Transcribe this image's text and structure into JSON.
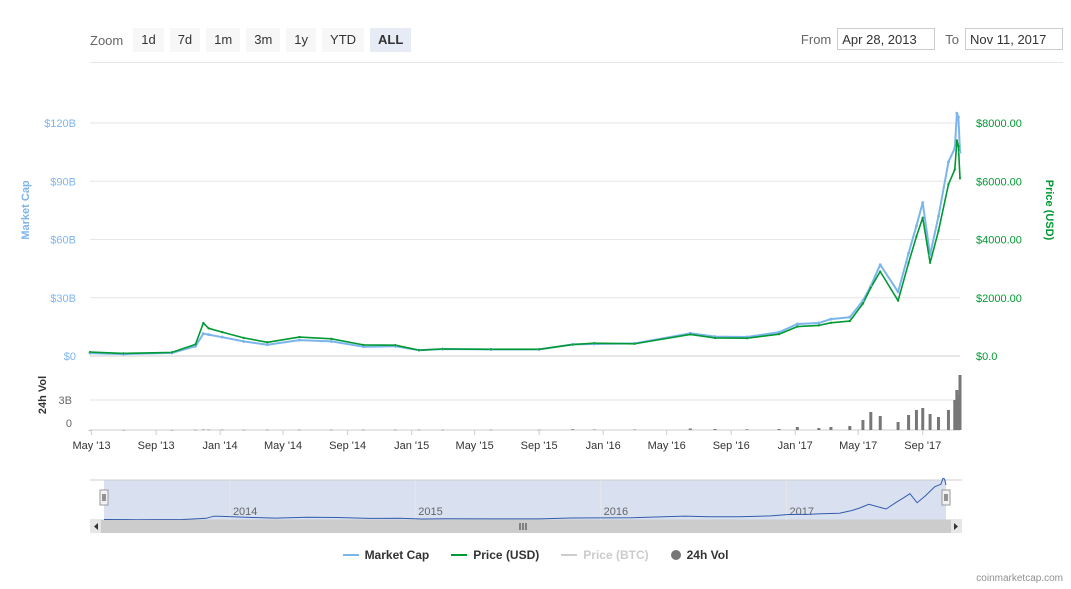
{
  "toolbar": {
    "zoom_label": "Zoom",
    "buttons": [
      "1d",
      "7d",
      "1m",
      "3m",
      "1y",
      "YTD",
      "ALL"
    ],
    "active": "ALL",
    "from_label": "From",
    "from_value": "Apr 28, 2013",
    "to_label": "To",
    "to_value": "Nov 11, 2017"
  },
  "colors": {
    "market_cap": "#7cb5ec",
    "price_usd": "#009933",
    "price_btc": "#cccccc",
    "volume": "#777777"
  },
  "legend": {
    "market_cap": "Market Cap",
    "price_usd": "Price (USD)",
    "price_btc": "Price (BTC)",
    "volume": "24h Vol"
  },
  "credit": "coinmarketcap.com",
  "chart_data": {
    "type": "line",
    "x": [
      "2013-04-28",
      "2013-07-01",
      "2013-10-01",
      "2013-11-15",
      "2013-11-30",
      "2013-12-10",
      "2014-01-05",
      "2014-02-15",
      "2014-04-01",
      "2014-06-01",
      "2014-08-01",
      "2014-10-01",
      "2014-12-01",
      "2015-01-15",
      "2015-03-01",
      "2015-06-01",
      "2015-09-01",
      "2015-11-04",
      "2015-12-15",
      "2016-03-01",
      "2016-06-15",
      "2016-08-01",
      "2016-10-01",
      "2016-12-01",
      "2017-01-05",
      "2017-02-15",
      "2017-03-10",
      "2017-04-15",
      "2017-05-10",
      "2017-05-25",
      "2017-06-12",
      "2017-07-16",
      "2017-08-05",
      "2017-08-20",
      "2017-09-01",
      "2017-09-15",
      "2017-10-01",
      "2017-10-20",
      "2017-11-01",
      "2017-11-05",
      "2017-11-08",
      "2017-11-11"
    ],
    "series": [
      {
        "name": "Market Cap",
        "axis": "left",
        "unit": "USD",
        "values": [
          1500000000.0,
          1000000000.0,
          1600000000.0,
          5000000000.0,
          11500000000.0,
          11000000000.0,
          9700000000.0,
          7500000000.0,
          5800000000.0,
          8200000000.0,
          7500000000.0,
          4800000000.0,
          5000000000.0,
          3000000000.0,
          3600000000.0,
          3400000000.0,
          3400000000.0,
          6000000000.0,
          6200000000.0,
          6500000000.0,
          11700000000.0,
          10000000000.0,
          9800000000.0,
          12200000000.0,
          16500000000.0,
          17000000000.0,
          19000000000.0,
          20000000000.0,
          28500000000.0,
          36000000000.0,
          47000000000.0,
          33000000000.0,
          53000000000.0,
          67000000000.0,
          79000000000.0,
          52000000000.0,
          72000000000.0,
          100000000000.0,
          107000000000.0,
          125000000000.0,
          123000000000.0,
          105000000000.0
        ]
      },
      {
        "name": "Price (USD)",
        "axis": "right",
        "unit": "USD",
        "values": [
          135,
          90,
          125,
          400,
          1130,
          950,
          820,
          620,
          470,
          650,
          590,
          380,
          370,
          200,
          240,
          230,
          230,
          390,
          440,
          420,
          740,
          620,
          610,
          750,
          1010,
          1050,
          1140,
          1200,
          1800,
          2350,
          2900,
          1900,
          3200,
          4100,
          4750,
          3200,
          4300,
          5900,
          6400,
          7400,
          7200,
          6100
        ]
      },
      {
        "name": "24h Vol",
        "axis": "left_volume",
        "unit": "USD",
        "values": [
          10000000.0,
          10000000.0,
          10000000.0,
          20000000.0,
          50000000.0,
          40000000.0,
          30000000.0,
          20000000.0,
          20000000.0,
          20000000.0,
          20000000.0,
          20000000.0,
          20000000.0,
          20000000.0,
          20000000.0,
          20000000.0,
          20000000.0,
          80000000.0,
          50000000.0,
          50000000.0,
          150000000.0,
          100000000.0,
          70000000.0,
          100000000.0,
          300000000.0,
          200000000.0,
          300000000.0,
          400000000.0,
          1000000000.0,
          1800000000.0,
          1400000000.0,
          800000000.0,
          1500000000.0,
          2000000000.0,
          2200000000.0,
          1600000000.0,
          1300000000.0,
          2000000000.0,
          3000000000.0,
          4000000000.0,
          3500000000.0,
          5500000000.0
        ]
      }
    ],
    "left_axis": {
      "title": "Market Cap",
      "ticks": [
        "$0",
        "$30B",
        "$60B",
        "$90B",
        "$120B"
      ],
      "range": [
        0,
        120000000000.0
      ]
    },
    "right_axis": {
      "title": "Price (USD)",
      "ticks": [
        "$0.0",
        "$2000.00",
        "$4000.00",
        "$6000.00",
        "$8000.00"
      ],
      "range": [
        0,
        8000
      ]
    },
    "volume_axis": {
      "title": "24h Vol",
      "ticks": [
        "0",
        "3B"
      ],
      "range": [
        0,
        6500000000.0
      ]
    },
    "x_axis": {
      "ticks": [
        "May '13",
        "Sep '13",
        "Jan '14",
        "May '14",
        "Sep '14",
        "Jan '15",
        "May '15",
        "Sep '15",
        "Jan '16",
        "May '16",
        "Sep '16",
        "Jan '17",
        "May '17",
        "Sep '17"
      ],
      "tick_dates": [
        "2013-05-01",
        "2013-09-01",
        "2014-01-01",
        "2014-05-01",
        "2014-09-01",
        "2015-01-01",
        "2015-05-01",
        "2015-09-01",
        "2016-01-01",
        "2016-05-01",
        "2016-09-01",
        "2017-01-01",
        "2017-05-01",
        "2017-09-01"
      ]
    },
    "navigator": {
      "labels": [
        "2014",
        "2015",
        "2016",
        "2017"
      ],
      "label_dates": [
        "2014-01-01",
        "2015-01-01",
        "2016-01-01",
        "2017-01-01"
      ]
    },
    "grid": true
  }
}
